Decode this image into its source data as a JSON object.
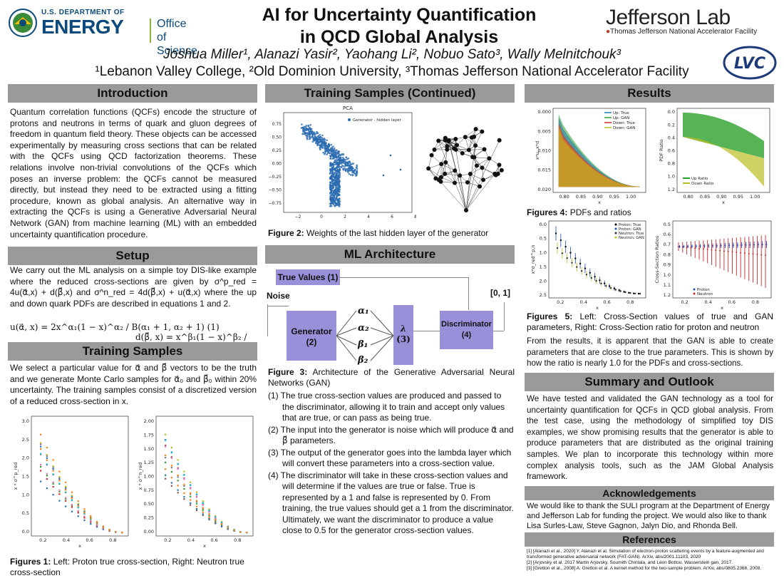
{
  "header": {
    "doe_small": "U.S. DEPARTMENT OF",
    "doe_big": "ENERGY",
    "office_of": "Office of",
    "science": "Science",
    "title_line1": "AI for Uncertainty Quantification",
    "title_line2": "in QCD Global Analysis",
    "authors": "Joshua Miller¹, Alanazi Yasir², Yaohang Li², Nobuo Sato³, Wally Melnitchouk³",
    "affiliations": "¹Lebanon Valley College, ²Old Dominion University, ³Thomas Jefferson National Accelerator Facility",
    "jlab_big": "Jefferson Lab",
    "jlab_sub": "Thomas Jefferson National Accelerator Facility",
    "lvc_logo": "LVC"
  },
  "intro": {
    "heading": "Introduction",
    "body": "Quantum correlation functions (QCFs) encode the structure of protons and neutrons in terms of quark and gluon degrees of freedom in quantum field theory. These objects can be accessed experimentally by measuring cross sections that can be related with the QCFs using QCD factorization theorems. These relations involve non-trivial convolutions of the QCFs which poses an inverse problem: the QCFs cannot be measured directly, but instead they need to be extracted using a fitting procedure, known as global analysis. An alternative way in extracting the QCFs is using a Generative Adversarial Neural Network (GAN) from machine learning (ML) with an embedded uncertainty quantification procedure."
  },
  "setup": {
    "heading": "Setup",
    "body": "We carry out the ML analysis on a simple toy DIS-like example where the reduced cross-sections are given by σ^p_red = 4u(α⃗,x) + d(β⃗,x) and σ^n_red = 4d(β⃗,x) + u(α⃗,x) where the up and down quark PDFs are described in equations 1 and 2.",
    "eq1": "u(α⃗, x) = 2x^α₁(1 − x)^α₂ / B(α₁ + 1, α₂ + 1)   (1)",
    "eq2": "d(β⃗, x) = x^β₁(1 − x)^β₂ / B(β₁ + 1, β₂ + 1)   (2)"
  },
  "training": {
    "heading": "Training Samples",
    "body": "We select a particular value for α⃗ and β⃗ vectors to be the truth and we generate Monte Carlo samples for α⃗₀ and β⃗₀ within 20% uncertainty. The training samples consist of a discretized version of a reduced cross-section in x.",
    "caption_label": "Figures 1:",
    "caption": " Left: Proton true cross-section, Right: Neutron true cross-section",
    "left_plot": {
      "ylabel": "x * σ^p_red",
      "xlabel": "x",
      "yticks": [
        "0.0",
        "0.5",
        "1.0",
        "1.5",
        "2.0",
        "2.5",
        "3.0"
      ],
      "xticks": [
        "0.2",
        "0.4",
        "0.6",
        "0.8"
      ]
    },
    "right_plot": {
      "ylabel": "x * σ^n_red",
      "xlabel": "x",
      "yticks": [
        "0.00",
        "0.25",
        "0.50",
        "0.75",
        "1.00",
        "1.25",
        "1.50",
        "1.75",
        "2.00"
      ],
      "xticks": [
        "0.2",
        "0.4",
        "0.6",
        "0.8"
      ]
    }
  },
  "training_cont": {
    "heading": "Training Samples (Continued)",
    "pca_title": "PCA",
    "pca_legend": "Generator - hidden layer",
    "pca_yticks": [
      "0.75",
      "0.50",
      "0.25",
      "0.00",
      "−0.25",
      "−0.50",
      "−0.75"
    ],
    "pca_xticks": [
      "−2",
      "0",
      "2",
      "4",
      "6",
      "8"
    ],
    "caption_label": "Figure 2:",
    "caption": " Weights of the last hidden layer of the generator"
  },
  "ml": {
    "heading": "ML Architecture",
    "true_values": "True Values (1)",
    "noise": "Noise",
    "range": "[0, 1]",
    "generator": "Generator\n(2)",
    "generator_l1": "Generator",
    "generator_l2": "(2)",
    "params": [
      "α₁",
      "α₂",
      "β₁",
      "β₂"
    ],
    "lambda_l1": "λ",
    "lambda_l2": "(3)",
    "disc_l1": "Discriminator",
    "disc_l2": "(4)",
    "caption_label": "Figure 3:",
    "caption": " Architecture of the Generative Adversarial Neural Networks (GAN)",
    "steps": [
      "(1) The true cross-section values are produced and passed to the discriminator, allowing it to train and accept only values that are true, or can pass as being true.",
      "(2) The input into the generator is noise which will produce α⃗ and β⃗ parameters.",
      "(3) The output of the generator goes into the lambda layer which will convert these parameters into a cross-section value.",
      "(4) The discriminator will take in these cross-section values and will determine if the values are true or false. True is represented by a 1 and false is represented by 0. From training, the true values should get a 1 from the discriminator. Ultimately, we want the discriminator to produce a value close to 0.5 for the generator cross-section values."
    ]
  },
  "results": {
    "heading": "Results",
    "fig4_label": "Figures 4:",
    "fig4_caption": " PDFs and ratios",
    "pdf_legend": [
      "Up: True",
      "Up: GAN",
      "Down: True",
      "Down: GAN"
    ],
    "pdf_ylabel": "x*u, x*d",
    "pdf_yticks": [
      "0.020",
      "0.015",
      "0.010",
      "0.005",
      "0.000"
    ],
    "pdf_xticks": [
      "0.80",
      "0.85",
      "0.90",
      "0.95",
      "1.00"
    ],
    "ratio_legend": [
      "Up Ratio",
      "Down Ratio"
    ],
    "ratio_ylabel": "PDF Ratio",
    "ratio_yticks": [
      "1.2",
      "1.0",
      "0.8",
      "0.6",
      "0.4",
      "0.2",
      "0.0"
    ],
    "cs_legend": [
      "Proton: True",
      "Proton: GAN",
      "Neutron: True",
      "Neutron: GAN"
    ],
    "cs_ylabel": "x*σ_red^p,n",
    "cs_yticks": [
      "2.5",
      "2.0",
      "1.5",
      "1.0",
      "0.5",
      "0.0"
    ],
    "csr_legend": [
      "Proton",
      "Neutron"
    ],
    "csr_ylabel": "Cross-Section Ratios",
    "csr_yticks": [
      "1.2",
      "1.1",
      "1.0",
      "0.9",
      "0.8",
      "0.7",
      "0.6",
      "0.5"
    ],
    "x_ticks3": [
      "0.2",
      "0.4",
      "0.6",
      "0.8"
    ],
    "xlabel": "x",
    "fig5_label": "Figures 5:",
    "fig5_caption": " Left: Cross-Section values of true and GAN parameters, Right: Cross-Section ratio for proton and neutron",
    "body": "From the results, it is apparent that the GAN is able to create parameters that are close to the true parameters. This is shown by how the ratio is nearly 1.0 for the PDFs and cross-sections."
  },
  "summary": {
    "heading": "Summary and Outlook",
    "body": "We have tested and validated the GAN technology as a tool for uncertainty quantification for QCFs in QCD global analysis. From the test case, using the methodology of simplified toy DIS examples, we show promising results that the generator is able to produce parameters that are distributed as the original training samples. We plan to incorporate this technology within more complex analysis tools, such as the JAM Global Analysis framework."
  },
  "ack": {
    "heading": "Acknowledgements",
    "body": "We would like to thank the SULI program at the Department of Energy and Jefferson Lab for funding the project. We would also like to thank Lisa Surles-Law, Steve Gagnon, Jalyn Dio, and Rhonda Bell."
  },
  "refs": {
    "heading": "References",
    "items": [
      "[1] [Alanazi et al., 2020] Y. Alanazi et al. Simulation of electron-proton scattering events by a feature-augmented and transformed generative adversarial network (FAT-GAN). ArXiv, abs/2001.11103, 2020",
      "[2] [Arjovsky et al. 2017 Martin Arjovsky, Soumith Chintala, and Léon Bottou. Wasserstein gan, 2017.",
      "[3] [Gretton et al., 2008] A. Gretton et al. A kernel method for the two-sample problem. ArXiv, abs/0805.2368, 2008."
    ]
  },
  "colors": {
    "section_bg": "#9a9a9a",
    "doe_blue": "#0b4a7a",
    "arch_purple": "#9890d8",
    "scatter_blue": "#2a6cb0"
  }
}
